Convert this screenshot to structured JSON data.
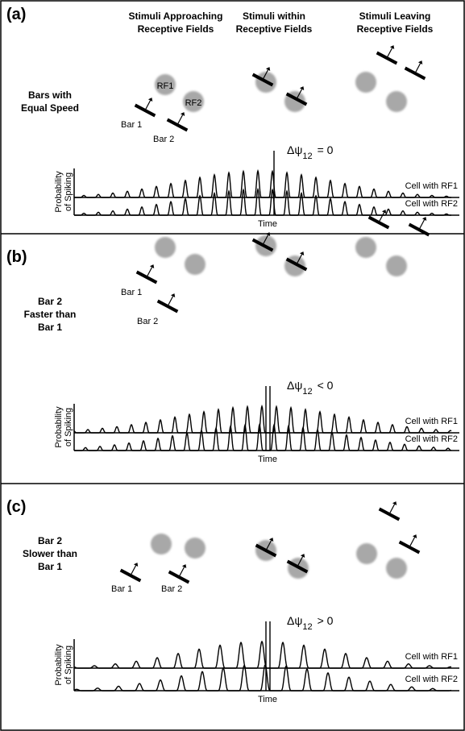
{
  "column_headers": [
    [
      "Stimuli Approaching",
      "Receptive Fields"
    ],
    [
      "Stimuli within",
      "Receptive Fields"
    ],
    [
      "Stimuli  Leaving",
      "Receptive Fields"
    ]
  ],
  "panels": [
    {
      "label": "(a)",
      "condition": [
        "Bars with",
        "Equal  Speed"
      ],
      "rf_labels": [
        "RF1",
        "RF2"
      ],
      "bar_labels": [
        "Bar 1",
        "Bar 2"
      ],
      "phase_symbol": "Δψ",
      "phase_subscript": "12",
      "phase_relation": "= 0",
      "y_label": [
        "Probability",
        "of Spiking"
      ],
      "x_label": "Time",
      "cell_labels": [
        "Cell with RF1",
        "Cell with RF2"
      ]
    },
    {
      "label": "(b)",
      "condition": [
        "Bar 2",
        "Faster than",
        "Bar 1"
      ],
      "bar_labels": [
        "Bar 1",
        "Bar 2"
      ],
      "phase_symbol": "Δψ",
      "phase_subscript": "12",
      "phase_relation": "< 0",
      "y_label": [
        "Probability",
        "of Spiking"
      ],
      "x_label": "Time",
      "cell_labels": [
        "Cell with RF1",
        "Cell with RF2"
      ]
    },
    {
      "label": "(c)",
      "condition": [
        "Bar 2",
        "Slower than",
        "Bar 1"
      ],
      "bar_labels": [
        "Bar 1",
        "Bar 2"
      ],
      "phase_symbol": "Δψ",
      "phase_subscript": "12",
      "phase_relation": "> 0",
      "y_label": [
        "Probability",
        "of Spiking"
      ],
      "x_label": "Time",
      "cell_labels": [
        "Cell with RF1",
        "Cell with RF2"
      ]
    }
  ]
}
